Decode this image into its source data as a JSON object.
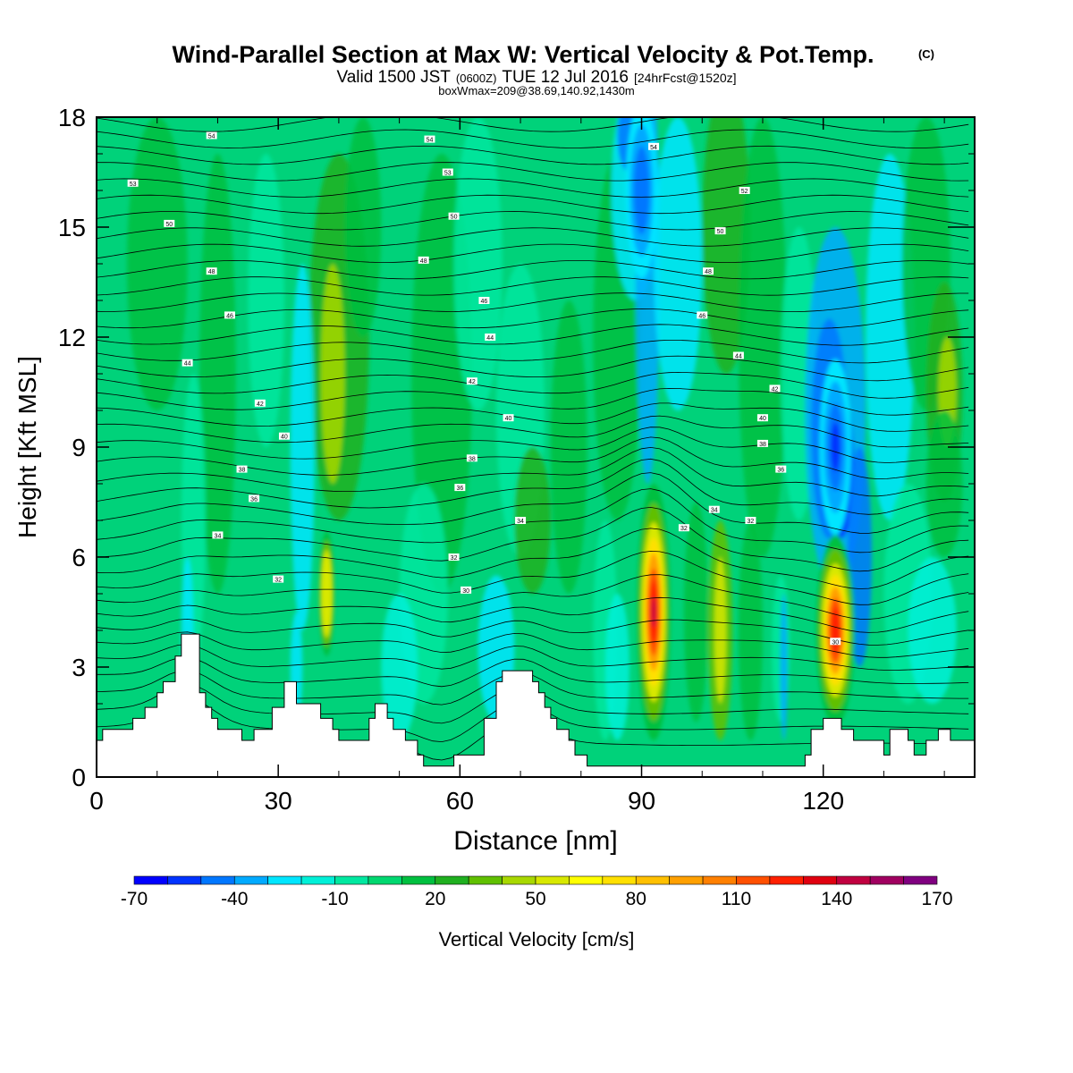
{
  "chart_data": {
    "type": "heatmap",
    "title": "Wind-Parallel Section at Max W: Vertical Velocity & Pot.Temp.",
    "title_mark": "(C)",
    "subtitle_valid": "Valid 1500 JST",
    "subtitle_zulu": "(0600Z)",
    "subtitle_date": "TUE 12 Jul 2016",
    "subtitle_fcst": "[24hrFcst@1520z]",
    "subtitle_box": "boxWmax=209@38.69,140.92,1430m",
    "xlabel": "Distance [nm]",
    "ylabel": "Height [Kft MSL]",
    "xlim": [
      0,
      145
    ],
    "ylim": [
      0,
      18
    ],
    "x_ticks": [
      "0",
      "30",
      "60",
      "90",
      "120"
    ],
    "y_ticks": [
      "0",
      "3",
      "6",
      "9",
      "12",
      "15",
      "18"
    ],
    "colorbar": {
      "label": "Vertical Velocity [cm/s]",
      "tick_labels": [
        "-70",
        "-40",
        "-10",
        "20",
        "50",
        "80",
        "110",
        "140",
        "170"
      ],
      "colors": [
        "#0000ff",
        "#0033ff",
        "#0077ff",
        "#00aaff",
        "#00e6ff",
        "#00f0d8",
        "#00e8a0",
        "#00d870",
        "#00c040",
        "#20b020",
        "#60c000",
        "#a8d800",
        "#d8e800",
        "#ffff00",
        "#ffe000",
        "#ffc000",
        "#ffa000",
        "#ff8000",
        "#ff5000",
        "#ff2000",
        "#e00010",
        "#c00040",
        "#a00060",
        "#800080"
      ]
    },
    "updraft_cores": [
      {
        "distance_nm": 92,
        "peak_kft": 4.5,
        "max_cms": 209
      },
      {
        "distance_nm": 122,
        "peak_kft": 4,
        "max_cms": 150
      },
      {
        "distance_nm": 38,
        "peak_kft": 5,
        "max_cms": 50
      }
    ],
    "downdraft_cores": [
      {
        "distance_nm": 122,
        "peak_kft": 9,
        "min_cms": -60
      },
      {
        "distance_nm": 90,
        "peak_kft": 16,
        "min_cms": -40
      }
    ],
    "terrain": [
      [
        0,
        1
      ],
      [
        1,
        1
      ],
      [
        1,
        1.3
      ],
      [
        6,
        1.3
      ],
      [
        6,
        1.6
      ],
      [
        8,
        1.6
      ],
      [
        8,
        1.9
      ],
      [
        10,
        1.9
      ],
      [
        10,
        2.3
      ],
      [
        11,
        2.3
      ],
      [
        11,
        2.6
      ],
      [
        13,
        2.6
      ],
      [
        13,
        3.3
      ],
      [
        14,
        3.3
      ],
      [
        14,
        3.9
      ],
      [
        17,
        3.9
      ],
      [
        17,
        2.3
      ],
      [
        18,
        2.3
      ],
      [
        18,
        1.9
      ],
      [
        19,
        1.9
      ],
      [
        19,
        1.6
      ],
      [
        20,
        1.6
      ],
      [
        20,
        1.3
      ],
      [
        24,
        1.3
      ],
      [
        24,
        1
      ],
      [
        26,
        1
      ],
      [
        26,
        1.3
      ],
      [
        29,
        1.3
      ],
      [
        29,
        1.9
      ],
      [
        31,
        1.9
      ],
      [
        31,
        2.6
      ],
      [
        33,
        2.6
      ],
      [
        33,
        2
      ],
      [
        37,
        2
      ],
      [
        37,
        1.6
      ],
      [
        39,
        1.6
      ],
      [
        39,
        1.3
      ],
      [
        40,
        1.3
      ],
      [
        40,
        1
      ],
      [
        45,
        1
      ],
      [
        45,
        1.6
      ],
      [
        46,
        1.6
      ],
      [
        46,
        2
      ],
      [
        48,
        2
      ],
      [
        48,
        1.6
      ],
      [
        49,
        1.6
      ],
      [
        49,
        1.3
      ],
      [
        51,
        1.3
      ],
      [
        51,
        1
      ],
      [
        53,
        1
      ],
      [
        53,
        0.6
      ],
      [
        54,
        0.6
      ],
      [
        54,
        0.3
      ],
      [
        59,
        0.3
      ],
      [
        59,
        0.6
      ],
      [
        64,
        0.6
      ],
      [
        64,
        1.6
      ],
      [
        66,
        1.6
      ],
      [
        66,
        2.6
      ],
      [
        67,
        2.6
      ],
      [
        67,
        2.9
      ],
      [
        72,
        2.9
      ],
      [
        72,
        2.6
      ],
      [
        73,
        2.6
      ],
      [
        73,
        2.3
      ],
      [
        74,
        2.3
      ],
      [
        74,
        1.9
      ],
      [
        75,
        1.9
      ],
      [
        75,
        1.6
      ],
      [
        76,
        1.6
      ],
      [
        76,
        1.3
      ],
      [
        78,
        1.3
      ],
      [
        78,
        1
      ],
      [
        79,
        1
      ],
      [
        79,
        0.6
      ],
      [
        81,
        0.6
      ],
      [
        81,
        0.3
      ],
      [
        117,
        0.3
      ],
      [
        117,
        0.6
      ],
      [
        118,
        0.6
      ],
      [
        118,
        1.3
      ],
      [
        120,
        1.3
      ],
      [
        120,
        1.6
      ],
      [
        123,
        1.6
      ],
      [
        123,
        1.3
      ],
      [
        125,
        1.3
      ],
      [
        125,
        1
      ],
      [
        130,
        1
      ],
      [
        130,
        0.6
      ],
      [
        131,
        0.6
      ],
      [
        131,
        1.3
      ],
      [
        134,
        1.3
      ],
      [
        134,
        1
      ],
      [
        135,
        1
      ],
      [
        135,
        0.6
      ],
      [
        137,
        0.6
      ],
      [
        137,
        1
      ],
      [
        139,
        1
      ],
      [
        139,
        1.3
      ],
      [
        141,
        1.3
      ],
      [
        141,
        1
      ],
      [
        145,
        1
      ]
    ],
    "theta_labels": [
      {
        "text": "54",
        "x": 19,
        "y": 17.5
      },
      {
        "text": "54",
        "x": 55,
        "y": 17.4
      },
      {
        "text": "54",
        "x": 92,
        "y": 17.2
      },
      {
        "text": "53",
        "x": 6,
        "y": 16.2
      },
      {
        "text": "53",
        "x": 58,
        "y": 16.5
      },
      {
        "text": "52",
        "x": 107,
        "y": 16
      },
      {
        "text": "50",
        "x": 12,
        "y": 15.1
      },
      {
        "text": "50",
        "x": 59,
        "y": 15.3
      },
      {
        "text": "50",
        "x": 103,
        "y": 14.9
      },
      {
        "text": "48",
        "x": 19,
        "y": 13.8
      },
      {
        "text": "48",
        "x": 54,
        "y": 14.1
      },
      {
        "text": "48",
        "x": 101,
        "y": 13.8
      },
      {
        "text": "46",
        "x": 22,
        "y": 12.6
      },
      {
        "text": "46",
        "x": 64,
        "y": 13
      },
      {
        "text": "46",
        "x": 100,
        "y": 12.6
      },
      {
        "text": "44",
        "x": 15,
        "y": 11.3
      },
      {
        "text": "44",
        "x": 65,
        "y": 12
      },
      {
        "text": "44",
        "x": 106,
        "y": 11.5
      },
      {
        "text": "42",
        "x": 27,
        "y": 10.2
      },
      {
        "text": "42",
        "x": 62,
        "y": 10.8
      },
      {
        "text": "42",
        "x": 112,
        "y": 10.6
      },
      {
        "text": "40",
        "x": 31,
        "y": 9.3
      },
      {
        "text": "40",
        "x": 68,
        "y": 9.8
      },
      {
        "text": "40",
        "x": 110,
        "y": 9.8
      },
      {
        "text": "38",
        "x": 24,
        "y": 8.4
      },
      {
        "text": "38",
        "x": 62,
        "y": 8.7
      },
      {
        "text": "38",
        "x": 110,
        "y": 9.1
      },
      {
        "text": "36",
        "x": 26,
        "y": 7.6
      },
      {
        "text": "36",
        "x": 60,
        "y": 7.9
      },
      {
        "text": "36",
        "x": 113,
        "y": 8.4
      },
      {
        "text": "34",
        "x": 20,
        "y": 6.6
      },
      {
        "text": "34",
        "x": 70,
        "y": 7
      },
      {
        "text": "34",
        "x": 102,
        "y": 7.3
      },
      {
        "text": "32",
        "x": 30,
        "y": 5.4
      },
      {
        "text": "32",
        "x": 59,
        "y": 6
      },
      {
        "text": "32",
        "x": 97,
        "y": 6.8
      },
      {
        "text": "32",
        "x": 108,
        "y": 7
      },
      {
        "text": "30",
        "x": 61,
        "y": 5.1
      },
      {
        "text": "30",
        "x": 122,
        "y": 3.7
      }
    ]
  }
}
